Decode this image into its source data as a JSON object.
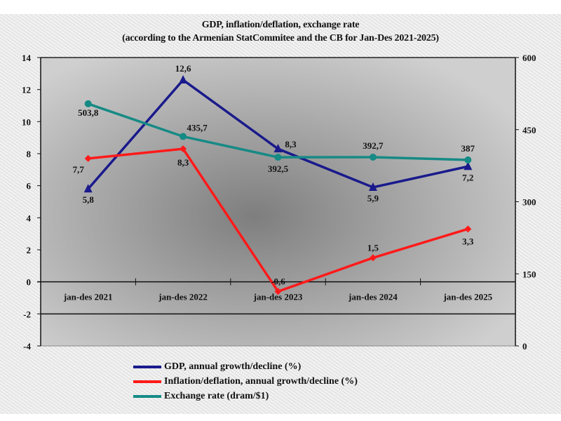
{
  "chart_data": {
    "type": "line",
    "title": "GDP, inflation/deflation, exchange rate",
    "subtitle": "(according to the Armenian StatCommitee and the CB for Jan-Des 2021-2025)",
    "categories": [
      "jan-des 2021",
      "jan-des 2022",
      "jan-des 2023",
      "jan-des 2024",
      "jan-des 2025"
    ],
    "y_left": {
      "range": [
        -4,
        14
      ],
      "ticks": [
        "-4",
        "-2",
        "0",
        "2",
        "4",
        "6",
        "8",
        "10",
        "12",
        "14"
      ]
    },
    "y_right": {
      "range": [
        0,
        600
      ],
      "ticks": [
        "0",
        "150",
        "300",
        "450",
        "600"
      ]
    },
    "grid": false,
    "legend_position": "bottom",
    "series": [
      {
        "name": "GDP, annual growth/decline (%)",
        "axis": "left",
        "color": "#1a1a8c",
        "marker": "triangle",
        "values": [
          5.8,
          12.6,
          8.3,
          5.9,
          7.2
        ],
        "labels": [
          "5,8",
          "12,6",
          "8,3",
          "5,9",
          "7,2"
        ]
      },
      {
        "name": "Inflation/deflation, annual growth/decline (%)",
        "axis": "left",
        "color": "#ff1a1a",
        "marker": "diamond",
        "values": [
          7.7,
          8.3,
          -0.6,
          1.5,
          3.3
        ],
        "labels": [
          "7,7",
          "8,3",
          "-0,6",
          "1,5",
          "3,3"
        ]
      },
      {
        "name": "Exchange rate (dram/$1)",
        "axis": "right",
        "color": "#168a85",
        "marker": "circle",
        "values": [
          503.8,
          435.7,
          392.5,
          392.7,
          387
        ],
        "labels": [
          "503,8",
          "435,7",
          "392,5",
          "392,7",
          "387"
        ]
      }
    ]
  }
}
